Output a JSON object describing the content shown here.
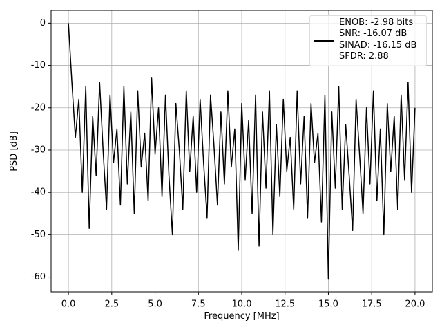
{
  "chart_data": {
    "type": "line",
    "xlabel": "Frequency [MHz]",
    "ylabel": "PSD [dB]",
    "x": [
      0,
      0.2,
      0.4,
      0.6,
      0.8,
      1.0,
      1.2,
      1.4,
      1.6,
      1.8,
      2.0,
      2.2,
      2.4,
      2.6,
      2.8,
      3.0,
      3.2,
      3.4,
      3.6,
      3.8,
      4.0,
      4.2,
      4.4,
      4.6,
      4.8,
      5.0,
      5.2,
      5.4,
      5.6,
      5.8,
      6.0,
      6.2,
      6.4,
      6.6,
      6.8,
      7.0,
      7.2,
      7.4,
      7.6,
      7.8,
      8.0,
      8.2,
      8.4,
      8.6,
      8.8,
      9.0,
      9.2,
      9.4,
      9.6,
      9.8,
      10.0,
      10.2,
      10.4,
      10.6,
      10.8,
      11.0,
      11.2,
      11.4,
      11.6,
      11.8,
      12.0,
      12.2,
      12.4,
      12.6,
      12.8,
      13.0,
      13.2,
      13.4,
      13.6,
      13.8,
      14.0,
      14.2,
      14.4,
      14.6,
      14.8,
      15.0,
      15.2,
      15.4,
      15.6,
      15.8,
      16.0,
      16.2,
      16.4,
      16.6,
      16.8,
      17.0,
      17.2,
      17.4,
      17.6,
      17.8,
      18.0,
      18.2,
      18.4,
      18.6,
      18.8,
      19.0,
      19.2,
      19.4,
      19.6,
      19.8,
      20.0
    ],
    "series": [
      {
        "name": "ENOB: -2.98 bits\nSNR: -16.07 dB\nSINAD: -16.15 dB\nSFDR: 2.88",
        "color": "#000000",
        "values": [
          0,
          -14,
          -27,
          -18,
          -40,
          -15,
          -48.5,
          -22,
          -36,
          -14,
          -30,
          -44,
          -17,
          -33,
          -25,
          -43,
          -15,
          -38,
          -21,
          -45,
          -16,
          -34,
          -26,
          -42,
          -13,
          -31,
          -20,
          -41,
          -17,
          -36,
          -50,
          -19,
          -30,
          -44,
          -16,
          -35,
          -22,
          -40,
          -18,
          -33,
          -46,
          -17,
          -29,
          -43,
          -21,
          -38,
          -16,
          -34,
          -25,
          -53.7,
          -19,
          -37,
          -23,
          -45,
          -17,
          -52.7,
          -21,
          -39,
          -16,
          -50,
          -24,
          -41,
          -18,
          -35,
          -27,
          -44,
          -16,
          -38,
          -22,
          -46,
          -19,
          -33,
          -26,
          -47,
          -17,
          -60.5,
          -21,
          -39,
          -15,
          -44,
          -24,
          -36,
          -49,
          -18,
          -31,
          -45,
          -20,
          -38,
          -16,
          -42,
          -25,
          -50,
          -19,
          -35,
          -22,
          -44,
          -17,
          -37,
          -14,
          -40,
          -20
        ]
      }
    ],
    "xlim": [
      -1.0,
      21.0
    ],
    "xticks": [
      {
        "value": 0,
        "label": "0.0"
      },
      2.5,
      {
        "value": 5,
        "label": "5.0"
      },
      7.5,
      {
        "value": 10,
        "label": "10.0"
      },
      12.5,
      {
        "value": 15,
        "label": "15.0"
      },
      17.5,
      {
        "value": 20,
        "label": "20.0"
      }
    ],
    "ylim": [
      -63.5,
      3.0
    ],
    "yticks": [
      -60,
      -50,
      -40,
      -30,
      -20,
      -10,
      0
    ],
    "grid": true,
    "legend": "upper right"
  }
}
